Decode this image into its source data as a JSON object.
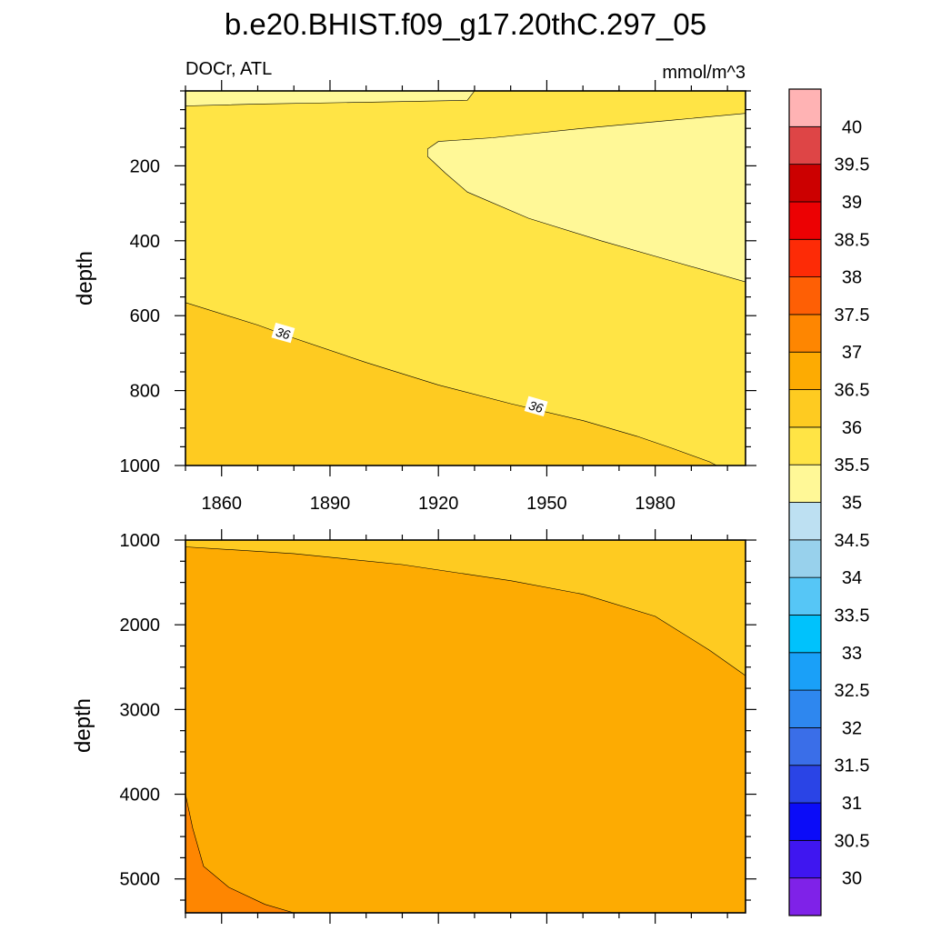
{
  "chart_data": [
    {
      "type": "contour",
      "title": "b.e20.BHIST.f09_g17.20thC.297_05",
      "subtitle_left": "DOCr, ATL",
      "subtitle_right": "mmol/m^3",
      "ylabel": "depth",
      "xlim": [
        1850,
        2005
      ],
      "ylim": [
        1000,
        0
      ],
      "x_ticks": [
        1860,
        1890,
        1920,
        1950,
        1980
      ],
      "y_ticks": [
        200,
        400,
        600,
        800,
        1000
      ],
      "contour_labels": [
        "36",
        "36"
      ],
      "regions": [
        {
          "level": "35.5-36",
          "polygon": [
            [
              1850,
              40
            ],
            [
              1930,
              0
            ],
            [
              2005,
              0
            ],
            [
              2005,
              1000
            ],
            [
              1850,
              1000
            ]
          ]
        },
        {
          "level": "36-36.5",
          "polygon": [
            [
              1850,
              565
            ],
            [
              1870,
              625
            ],
            [
              1880,
              660
            ],
            [
              1900,
              725
            ],
            [
              1920,
              785
            ],
            [
              1940,
              835
            ],
            [
              1960,
              880
            ],
            [
              1975,
              922
            ],
            [
              1985,
              955
            ],
            [
              1995,
              990
            ],
            [
              1997,
              1000
            ],
            [
              1850,
              1000
            ]
          ]
        },
        {
          "level": "35-35.5",
          "polygon": [
            [
              1930,
              0
            ],
            [
              1850,
              0
            ],
            [
              1850,
              40
            ],
            [
              1870,
              35
            ],
            [
              1900,
              30
            ],
            [
              1928,
              25
            ]
          ]
        },
        {
          "level": "35-35.5",
          "polygon": [
            [
              1917,
              155
            ],
            [
              1920,
              135
            ],
            [
              1935,
              125
            ],
            [
              1960,
              100
            ],
            [
              1985,
              78
            ],
            [
              2005,
              60
            ],
            [
              2005,
              510
            ],
            [
              1985,
              455
            ],
            [
              1965,
              400
            ],
            [
              1945,
              340
            ],
            [
              1928,
              270
            ],
            [
              1922,
              220
            ],
            [
              1917,
              175
            ]
          ]
        }
      ]
    },
    {
      "type": "contour",
      "ylabel": "depth",
      "xlim": [
        1850,
        2005
      ],
      "ylim": [
        5400,
        1000
      ],
      "x_ticks": [
        1860,
        1890,
        1920,
        1950,
        1980
      ],
      "y_ticks": [
        1000,
        2000,
        3000,
        4000,
        5000
      ],
      "regions": [
        {
          "level": "36-36.5",
          "polygon": [
            [
              1850,
              1000
            ],
            [
              2005,
              1000
            ],
            [
              2005,
              5400
            ],
            [
              1850,
              5400
            ]
          ]
        },
        {
          "level": "36.5-37",
          "polygon": [
            [
              1850,
              1080
            ],
            [
              1880,
              1160
            ],
            [
              1910,
              1290
            ],
            [
              1940,
              1480
            ],
            [
              1960,
              1640
            ],
            [
              1980,
              1900
            ],
            [
              1995,
              2300
            ],
            [
              2005,
              2600
            ],
            [
              2005,
              5400
            ],
            [
              1850,
              5400
            ]
          ]
        },
        {
          "level": "37-37.5",
          "polygon": [
            [
              1850,
              4000
            ],
            [
              1852,
              4400
            ],
            [
              1855,
              4850
            ],
            [
              1862,
              5100
            ],
            [
              1872,
              5300
            ],
            [
              1880,
              5400
            ],
            [
              1850,
              5400
            ]
          ]
        }
      ]
    }
  ],
  "colorbar": {
    "labels": [
      "30",
      "30.5",
      "31",
      "31.5",
      "32",
      "32.5",
      "33",
      "33.5",
      "34",
      "34.5",
      "35",
      "35.5",
      "36",
      "36.5",
      "37",
      "37.5",
      "38",
      "38.5",
      "39",
      "39.5",
      "40"
    ],
    "colors": [
      "#7f22e8",
      "#3f16f0",
      "#0b0cf8",
      "#2a44e6",
      "#3a6ee8",
      "#2e87ef",
      "#1aa0f8",
      "#00c2fc",
      "#56c6f6",
      "#98d1ec",
      "#bde0f2",
      "#fff897",
      "#ffe445",
      "#fecb21",
      "#fdab02",
      "#fe8601",
      "#fe5f05",
      "#fd2b06",
      "#ec0103",
      "#cc0000",
      "#de4546",
      "#ffb3b4"
    ]
  }
}
